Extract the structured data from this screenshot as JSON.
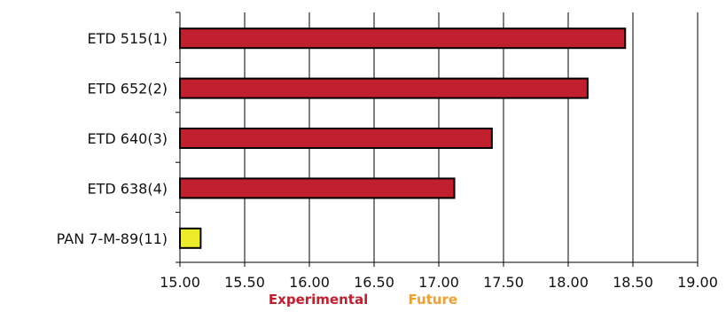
{
  "chart_data": {
    "type": "bar",
    "orientation": "horizontal",
    "categories": [
      "ETD 515(1)",
      "ETD 652(2)",
      "ETD 640(3)",
      "ETD 638(4)",
      "PAN 7-M-89(11)"
    ],
    "values": [
      18.44,
      18.15,
      17.41,
      17.12,
      15.16
    ],
    "bar_colors": [
      "#c0202e",
      "#c0202e",
      "#c0202e",
      "#c0202e",
      "#ecec2a"
    ],
    "xlim": [
      15.0,
      19.0
    ],
    "xticks": [
      "15.00",
      "15.50",
      "16.00",
      "16.50",
      "17.00",
      "17.50",
      "18.00",
      "18.50",
      "19.00"
    ],
    "grid": true,
    "legend_position": "bottom-center",
    "legend": [
      {
        "label": "Experimental",
        "color": "#c0202e"
      },
      {
        "label": "Future",
        "color": "#f0a030"
      }
    ]
  }
}
